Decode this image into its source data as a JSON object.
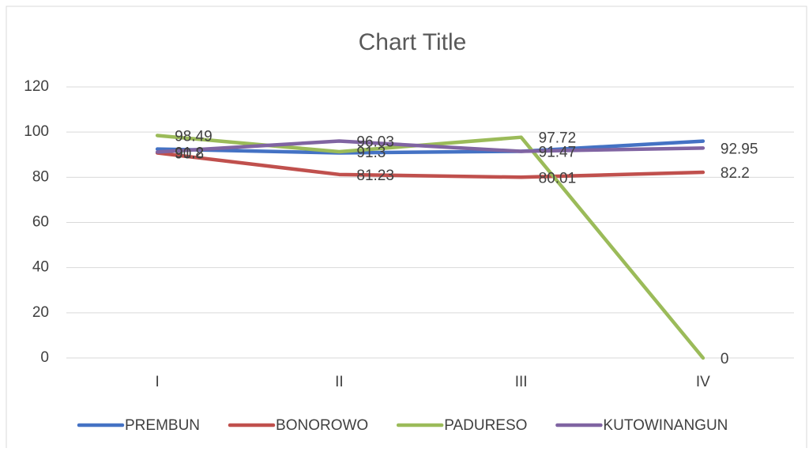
{
  "chart_data": {
    "type": "line",
    "title": "Chart Title",
    "categories": [
      "I",
      "II",
      "III",
      "IV"
    ],
    "series": [
      {
        "name": "PREMBUN",
        "color": "#4472c4",
        "values": [
          92.5,
          90.8,
          91.5,
          96
        ],
        "data_labels": false
      },
      {
        "name": "BONOROWO",
        "color": "#c0504d",
        "values": [
          90.8,
          81.23,
          80.01,
          82.2
        ],
        "data_labels": true
      },
      {
        "name": "PADURESO",
        "color": "#9bbb59",
        "values": [
          98.49,
          91.3,
          97.72,
          0
        ],
        "data_labels": true
      },
      {
        "name": "KUTOWINANGUN",
        "color": "#8064a2",
        "values": [
          91.2,
          96.03,
          91.47,
          92.95
        ],
        "data_labels": true
      }
    ],
    "ylim": [
      0,
      120
    ],
    "yticks": [
      0,
      20,
      40,
      60,
      80,
      100,
      120
    ],
    "grid": true,
    "legend": "bottom"
  }
}
